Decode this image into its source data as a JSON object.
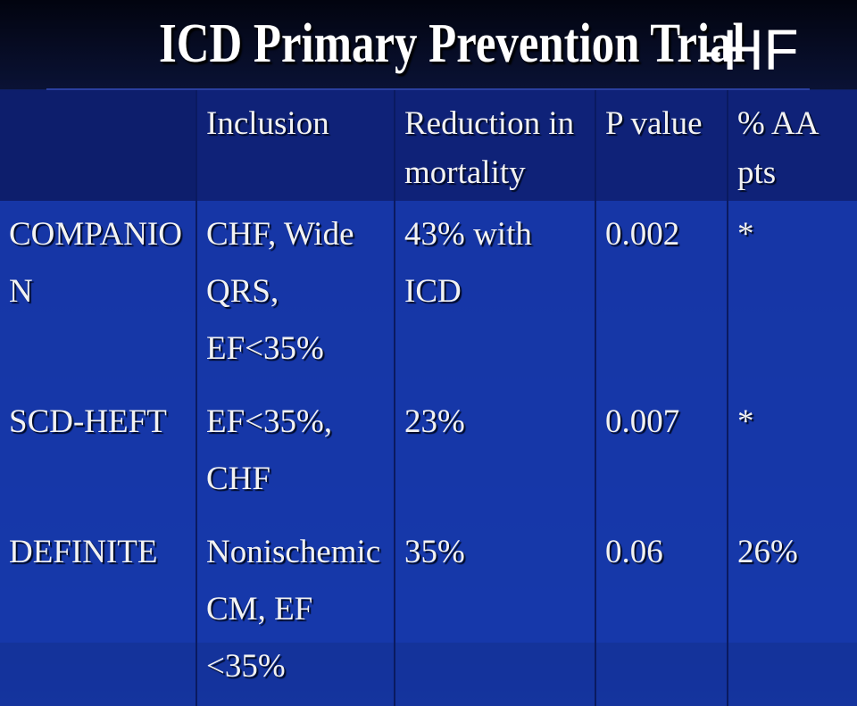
{
  "title": {
    "main": "ICD Primary Prevention Trial",
    "suffix": "-HF"
  },
  "table": {
    "header": [
      "",
      "Inclusion",
      "Reduction in mortality",
      "P value",
      "% AA pts"
    ],
    "rows": [
      [
        "COMPANION",
        "CHF, Wide QRS, EF<35%",
        "43% with ICD",
        "0.002",
        "*"
      ],
      [
        "SCD-HEFT",
        "EF<35%, CHF",
        "23%",
        "0.007",
        "*"
      ],
      [
        "DEFINITE",
        "Nonischemic CM, EF <35%",
        "35%",
        "0.06",
        "26%"
      ]
    ]
  }
}
